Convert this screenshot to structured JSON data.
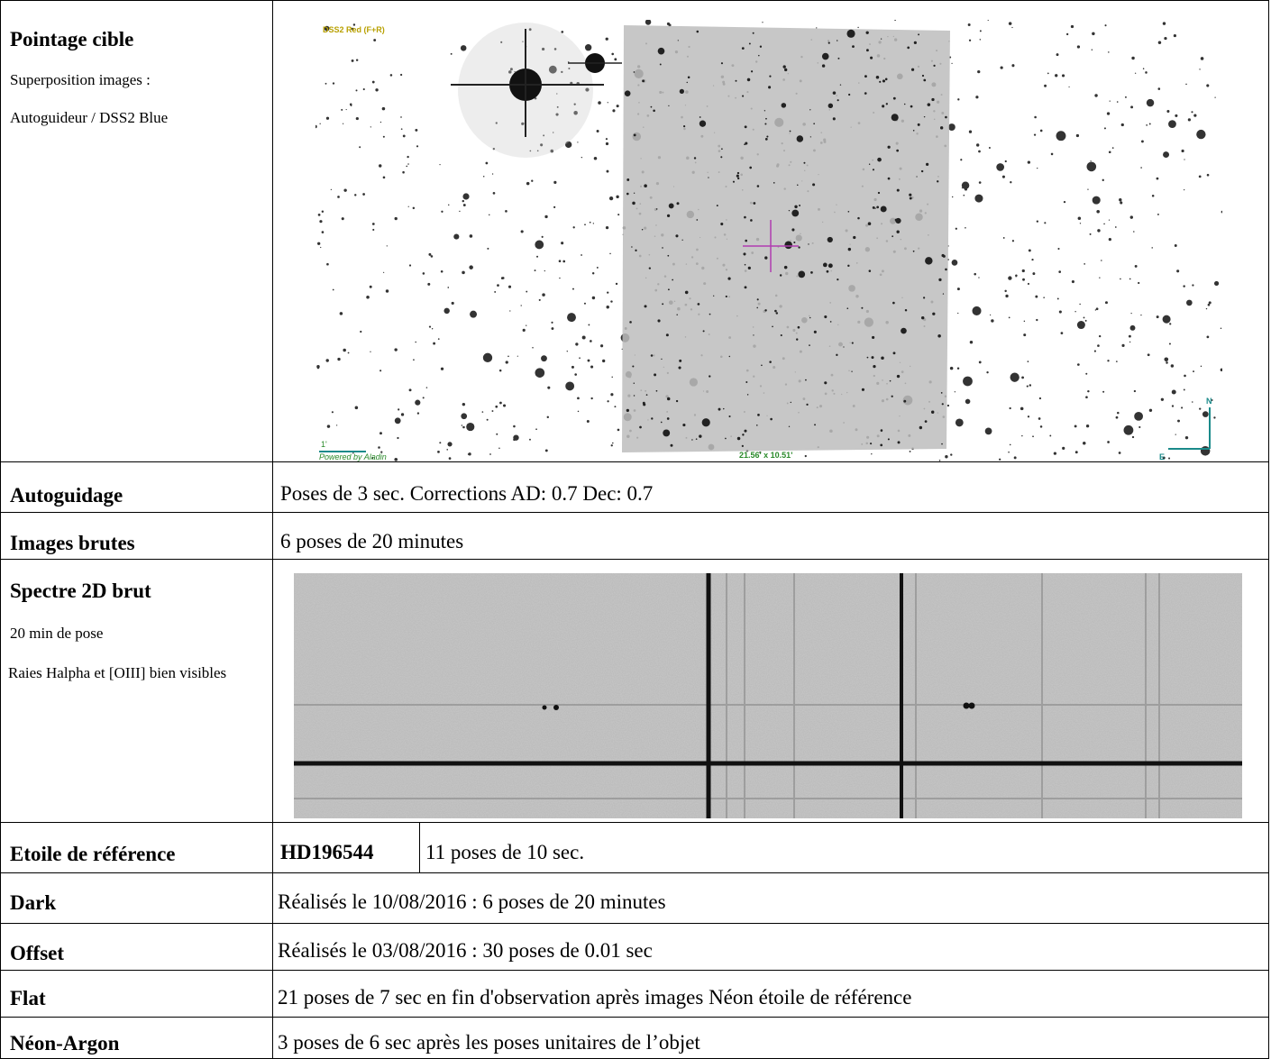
{
  "table": {
    "rows": [
      {
        "label": "Pointage cible",
        "notes": [
          "Superposition images :",
          "Autoguideur / DSS2 Blue"
        ],
        "image": {
          "survey": "DSS2 Red (F+R)",
          "credit": "Powered by Aladin",
          "field": "21.56' x 10.51'",
          "scale": "1'",
          "north": "N",
          "east": "E"
        }
      },
      {
        "label": "Autoguidage",
        "text": "Poses de 3 sec. Corrections AD: 0.7 Dec: 0.7"
      },
      {
        "label": "Images brutes",
        "text": "6 poses de 20 minutes"
      },
      {
        "label": "Spectre 2D brut",
        "notes": [
          "20 min de pose",
          "Raies Halpha et  [OIII] bien visibles"
        ]
      },
      {
        "label": "Etoile de référence",
        "star": "HD196544",
        "text": "11 poses de 10 sec."
      },
      {
        "label": "Dark",
        "text": "Réalisés le 10/08/2016 : 6 poses de 20 minutes"
      },
      {
        "label": "Offset",
        "text": "Réalisés le 03/08/2016 : 30 poses de 0.01 sec"
      },
      {
        "label": "Flat",
        "text": "21 poses de 7 sec en fin d'observation après images Néon étoile de référence"
      },
      {
        "label": "Néon-Argon",
        "text": "3 poses de 6 sec après les poses unitaires de l’objet"
      }
    ]
  }
}
